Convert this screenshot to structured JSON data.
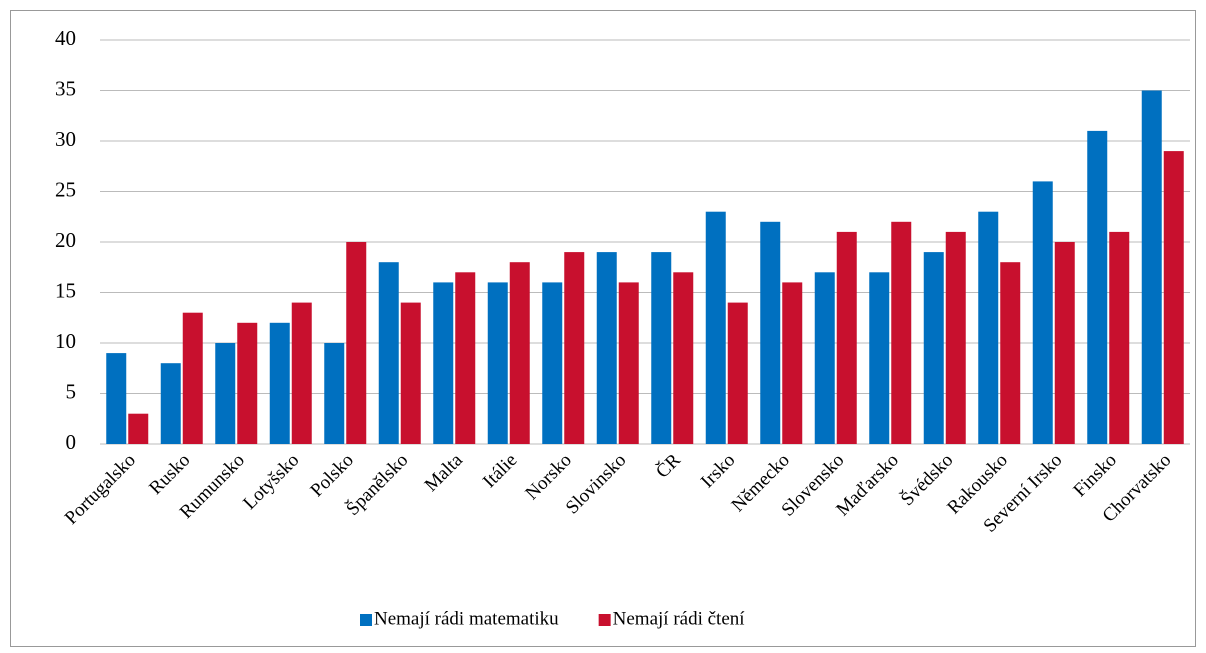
{
  "chart_data": {
    "type": "bar",
    "categories": [
      "Portugalsko",
      "Rusko",
      "Rumunsko",
      "Lotyšsko",
      "Polsko",
      "Španělsko",
      "Malta",
      "Itálie",
      "Norsko",
      "Slovinsko",
      "ČR",
      "Irsko",
      "Německo",
      "Slovensko",
      "Maďarsko",
      "Švédsko",
      "Rakousko",
      "Severní Irsko",
      "Finsko",
      "Chorvatsko"
    ],
    "series": [
      {
        "name": "Nemají rádi matematiku",
        "color": "#0070c0",
        "values": [
          9,
          8,
          10,
          12,
          10,
          18,
          16,
          16,
          16,
          19,
          19,
          23,
          22,
          17,
          17,
          19,
          23,
          26,
          31,
          35
        ]
      },
      {
        "name": "Nemají rádi čtení",
        "color": "#c8102e",
        "values": [
          3,
          13,
          12,
          14,
          20,
          14,
          17,
          18,
          19,
          16,
          17,
          14,
          16,
          21,
          22,
          21,
          18,
          20,
          21,
          29
        ]
      }
    ],
    "ylim": [
      0,
      40
    ],
    "yticks": [
      0,
      5,
      10,
      15,
      20,
      25,
      30,
      35,
      40
    ],
    "grid": true,
    "legend": "bottom"
  }
}
